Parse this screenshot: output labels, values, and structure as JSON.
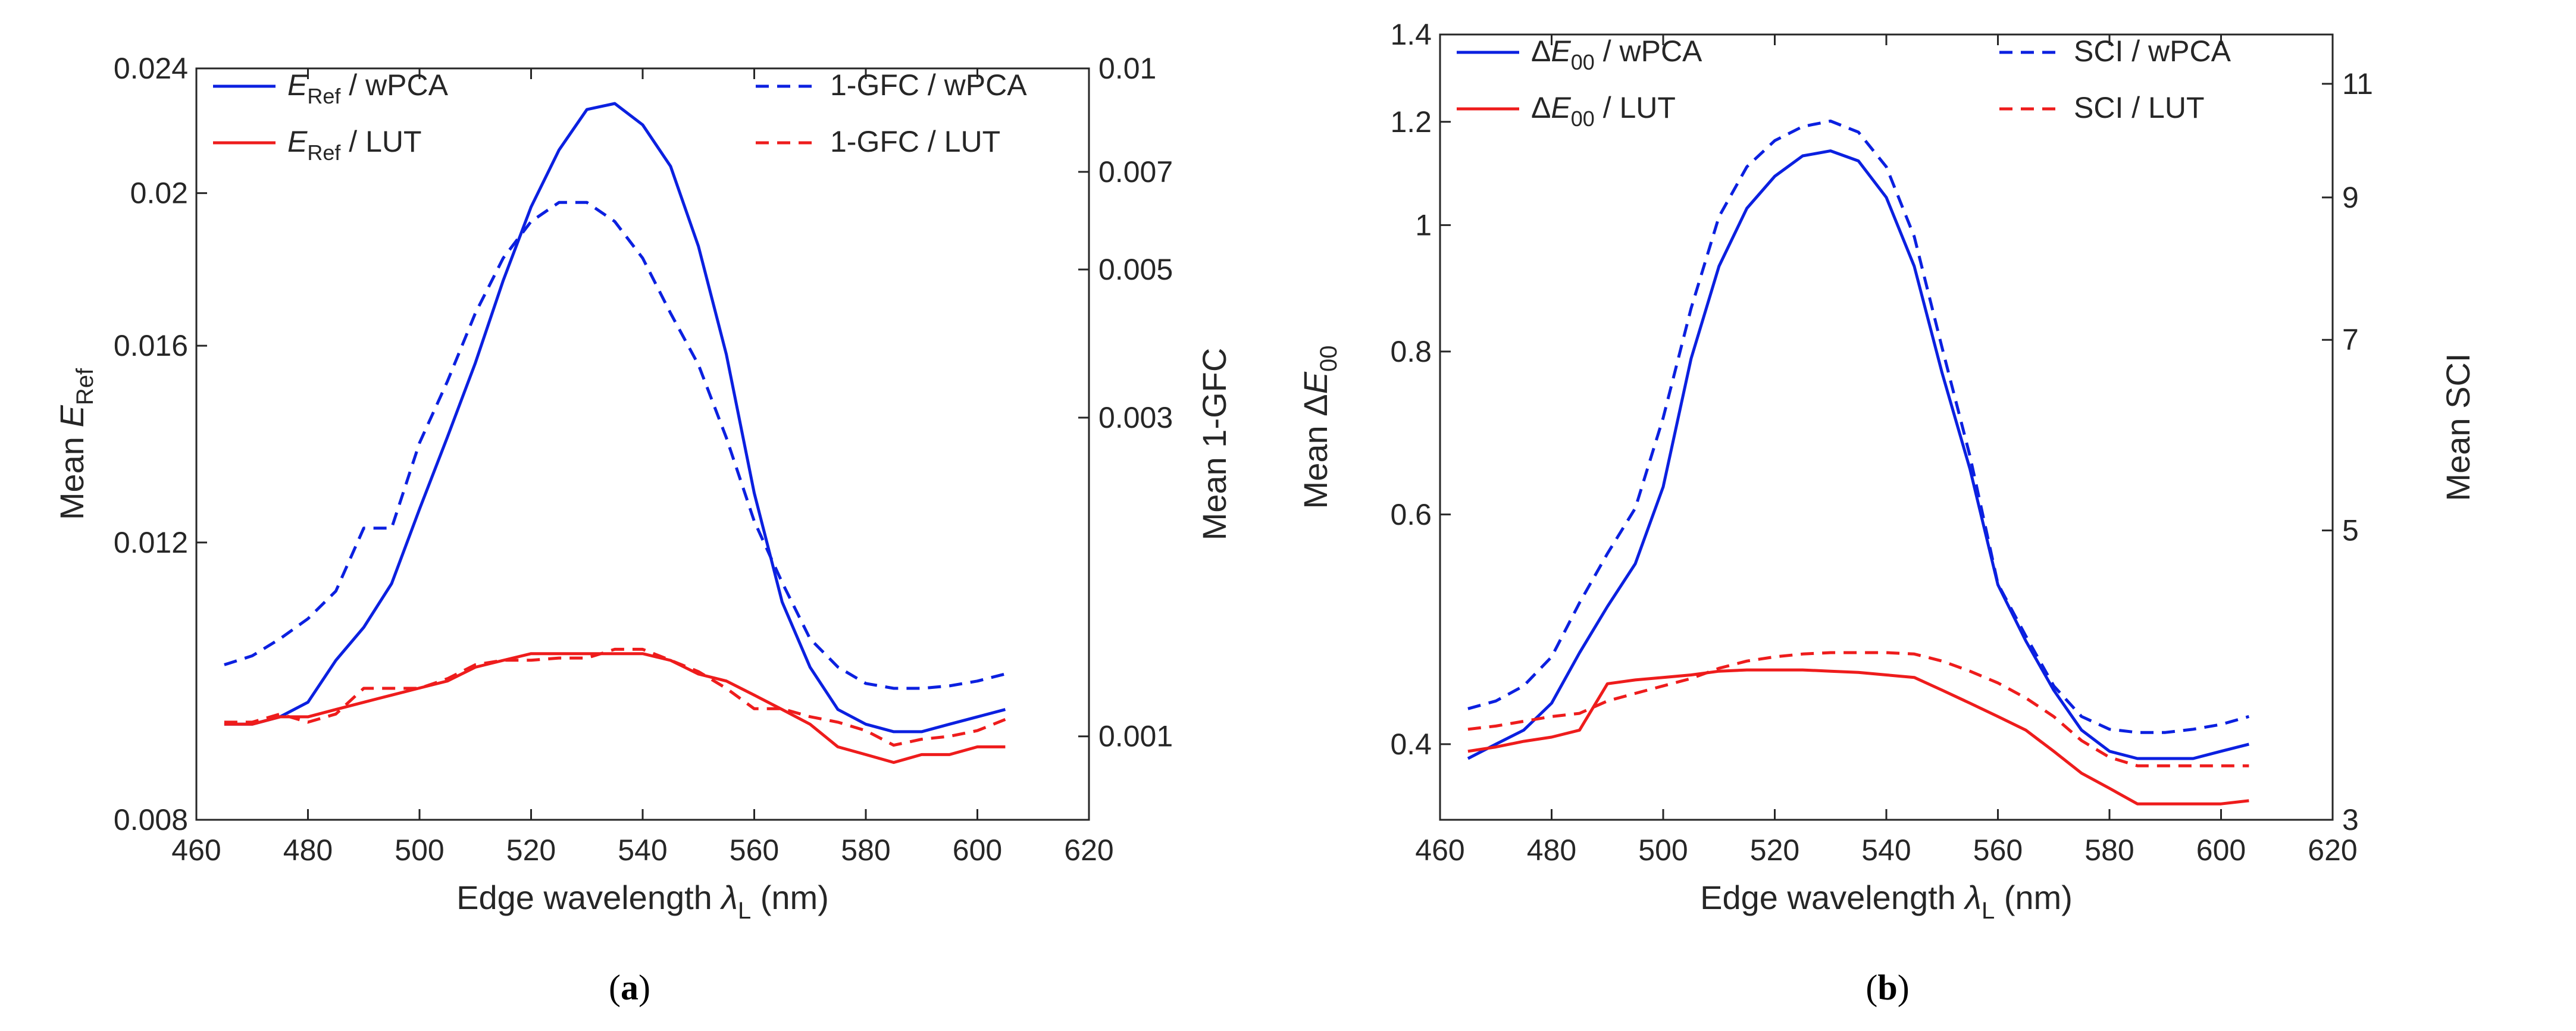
{
  "figure": {
    "panels": [
      "a",
      "b"
    ]
  },
  "colors": {
    "wpca": "#0b20e0",
    "lut": "#ee1c1c",
    "axis": "#262626"
  },
  "chart_data": [
    {
      "type": "line",
      "panel": "a",
      "caption": "a",
      "xlabel_prefix": "Edge wavelength ",
      "xlabel_symbol": "λ",
      "xlabel_sub": "L",
      "xlabel_suffix": " (nm)",
      "ylabel_left_prefix": "Mean ",
      "ylabel_left_symbol": "E",
      "ylabel_left_sub": "Ref",
      "ylabel_right": "Mean 1-GFC",
      "xlim": [
        460,
        620
      ],
      "xticks": [
        "460",
        "480",
        "500",
        "520",
        "540",
        "560",
        "580",
        "600",
        "620"
      ],
      "ylim_left": [
        0.008,
        0.024
      ],
      "yscale_left": "log",
      "yticks_left": [
        "0.008",
        "0.012",
        "0.016",
        "0.02",
        "0.024"
      ],
      "ylim_right": [
        0.00075,
        0.01
      ],
      "yscale_right": "log",
      "yticks_right": [
        "0.001",
        "0.003",
        "0.005",
        "0.007",
        "0.01"
      ],
      "x": [
        465,
        470,
        475,
        480,
        485,
        490,
        495,
        500,
        505,
        510,
        515,
        520,
        525,
        530,
        535,
        540,
        545,
        550,
        555,
        560,
        565,
        570,
        575,
        580,
        585,
        590,
        595,
        600,
        605
      ],
      "series": [
        {
          "name": "E_Ref / wPCA",
          "axis": "left",
          "style": "solid",
          "color": "#0b20e0",
          "values": [
            0.0092,
            0.0092,
            0.0093,
            0.0095,
            0.0101,
            0.0106,
            0.0113,
            0.0126,
            0.014,
            0.0156,
            0.0176,
            0.0196,
            0.0213,
            0.0226,
            0.0228,
            0.0221,
            0.0208,
            0.0185,
            0.0158,
            0.0129,
            0.011,
            0.01,
            0.0094,
            0.0092,
            0.0091,
            0.0091,
            0.0092,
            0.0093,
            0.0094
          ]
        },
        {
          "name": "E_Ref / LUT",
          "axis": "left",
          "style": "solid",
          "color": "#ee1c1c",
          "values": [
            0.0092,
            0.0092,
            0.0093,
            0.0093,
            0.0094,
            0.0095,
            0.0096,
            0.0097,
            0.0098,
            0.01,
            0.0101,
            0.0102,
            0.0102,
            0.0102,
            0.0102,
            0.0102,
            0.0101,
            0.0099,
            0.0098,
            0.0096,
            0.0094,
            0.0092,
            0.0089,
            0.0088,
            0.0087,
            0.0088,
            0.0088,
            0.0089,
            0.0089
          ]
        },
        {
          "name": "1-GFC / wPCA",
          "axis": "right",
          "style": "dashed",
          "color": "#0b20e0",
          "values": [
            0.00128,
            0.00132,
            0.0014,
            0.0015,
            0.00165,
            0.00205,
            0.00205,
            0.00275,
            0.0034,
            0.0043,
            0.0052,
            0.0059,
            0.0063,
            0.0063,
            0.0059,
            0.0052,
            0.0043,
            0.0036,
            0.0028,
            0.0021,
            0.0017,
            0.0014,
            0.00127,
            0.0012,
            0.00118,
            0.00118,
            0.00119,
            0.00121,
            0.00124
          ]
        },
        {
          "name": "1-GFC / LUT",
          "axis": "right",
          "style": "dashed",
          "color": "#ee1c1c",
          "values": [
            0.00105,
            0.00105,
            0.00108,
            0.00105,
            0.00108,
            0.00118,
            0.00118,
            0.00118,
            0.00122,
            0.00128,
            0.0013,
            0.0013,
            0.00131,
            0.00131,
            0.00135,
            0.00135,
            0.0013,
            0.00125,
            0.00118,
            0.0011,
            0.0011,
            0.00107,
            0.00105,
            0.00102,
            0.00097,
            0.00099,
            0.001,
            0.00102,
            0.00106
          ]
        }
      ],
      "legend": {
        "left": [
          {
            "symbol": "E",
            "sub": "Ref",
            "suffix": " / wPCA",
            "color": "#0b20e0",
            "style": "solid"
          },
          {
            "symbol": "E",
            "sub": "Ref",
            "suffix": " / LUT",
            "color": "#ee1c1c",
            "style": "solid"
          }
        ],
        "right": [
          {
            "label": "1-GFC / wPCA",
            "color": "#0b20e0",
            "style": "dashed"
          },
          {
            "label": "1-GFC / LUT",
            "color": "#ee1c1c",
            "style": "dashed"
          }
        ]
      }
    },
    {
      "type": "line",
      "panel": "b",
      "caption": "b",
      "xlabel_prefix": "Edge wavelength ",
      "xlabel_symbol": "λ",
      "xlabel_sub": "L",
      "xlabel_suffix": " (nm)",
      "ylabel_left_prefix": "Mean Δ",
      "ylabel_left_symbol": "E",
      "ylabel_left_sub": "00",
      "ylabel_right": "Mean SCI",
      "xlim": [
        460,
        620
      ],
      "xticks": [
        "460",
        "480",
        "500",
        "520",
        "540",
        "560",
        "580",
        "600",
        "620"
      ],
      "ylim_left": [
        0.35,
        1.4
      ],
      "yscale_left": "log",
      "yticks_left": [
        "0.4",
        "0.6",
        "0.8",
        "1",
        "1.2",
        "1.4"
      ],
      "ylim_right": [
        3,
        12
      ],
      "yscale_right": "log",
      "yticks_right": [
        "3",
        "5",
        "7",
        "9",
        "11"
      ],
      "x": [
        465,
        470,
        475,
        480,
        485,
        490,
        495,
        500,
        505,
        510,
        515,
        520,
        525,
        530,
        535,
        540,
        545,
        550,
        555,
        560,
        565,
        570,
        575,
        580,
        585,
        590,
        595,
        600,
        605
      ],
      "series": [
        {
          "name": "ΔE00 / wPCA",
          "axis": "left",
          "style": "solid",
          "color": "#0b20e0",
          "values": [
            0.39,
            0.4,
            0.41,
            0.43,
            0.47,
            0.51,
            0.55,
            0.63,
            0.79,
            0.93,
            1.03,
            1.09,
            1.13,
            1.14,
            1.12,
            1.05,
            0.93,
            0.77,
            0.65,
            0.53,
            0.48,
            0.44,
            0.41,
            0.395,
            0.39,
            0.39,
            0.39,
            0.395,
            0.4
          ]
        },
        {
          "name": "ΔE00 / LUT",
          "axis": "left",
          "style": "solid",
          "color": "#ee1c1c",
          "values": [
            0.395,
            0.398,
            0.402,
            0.405,
            0.41,
            0.445,
            0.448,
            0.45,
            0.452,
            0.455,
            0.456,
            0.456,
            0.456,
            0.455,
            0.454,
            0.452,
            0.45,
            0.44,
            0.43,
            0.42,
            0.41,
            0.395,
            0.38,
            0.37,
            0.36,
            0.36,
            0.36,
            0.36,
            0.362
          ]
        },
        {
          "name": "SCI / wPCA",
          "axis": "right",
          "style": "dashed",
          "color": "#0b20e0",
          "values": [
            3.65,
            3.7,
            3.8,
            4.0,
            4.4,
            4.8,
            5.2,
            6.1,
            7.4,
            8.7,
            9.5,
            9.95,
            10.2,
            10.3,
            10.1,
            9.5,
            8.4,
            6.9,
            5.7,
            4.55,
            4.15,
            3.8,
            3.6,
            3.52,
            3.5,
            3.5,
            3.52,
            3.55,
            3.6
          ]
        },
        {
          "name": "SCI / LUT",
          "axis": "right",
          "style": "dashed",
          "color": "#ee1c1c",
          "values": [
            3.52,
            3.54,
            3.57,
            3.6,
            3.62,
            3.7,
            3.75,
            3.8,
            3.85,
            3.92,
            3.97,
            4.0,
            4.02,
            4.03,
            4.03,
            4.03,
            4.02,
            3.97,
            3.9,
            3.82,
            3.72,
            3.6,
            3.45,
            3.35,
            3.3,
            3.3,
            3.3,
            3.3,
            3.3
          ]
        }
      ],
      "legend": {
        "left": [
          {
            "symbol": "E",
            "sub": "00",
            "prefix": "Δ",
            "suffix": " / wPCA",
            "color": "#0b20e0",
            "style": "solid"
          },
          {
            "symbol": "E",
            "sub": "00",
            "prefix": "Δ",
            "suffix": " / LUT",
            "color": "#ee1c1c",
            "style": "solid"
          }
        ],
        "right": [
          {
            "label": "SCI / wPCA",
            "color": "#0b20e0",
            "style": "dashed"
          },
          {
            "label": "SCI / LUT",
            "color": "#ee1c1c",
            "style": "dashed"
          }
        ]
      }
    }
  ]
}
